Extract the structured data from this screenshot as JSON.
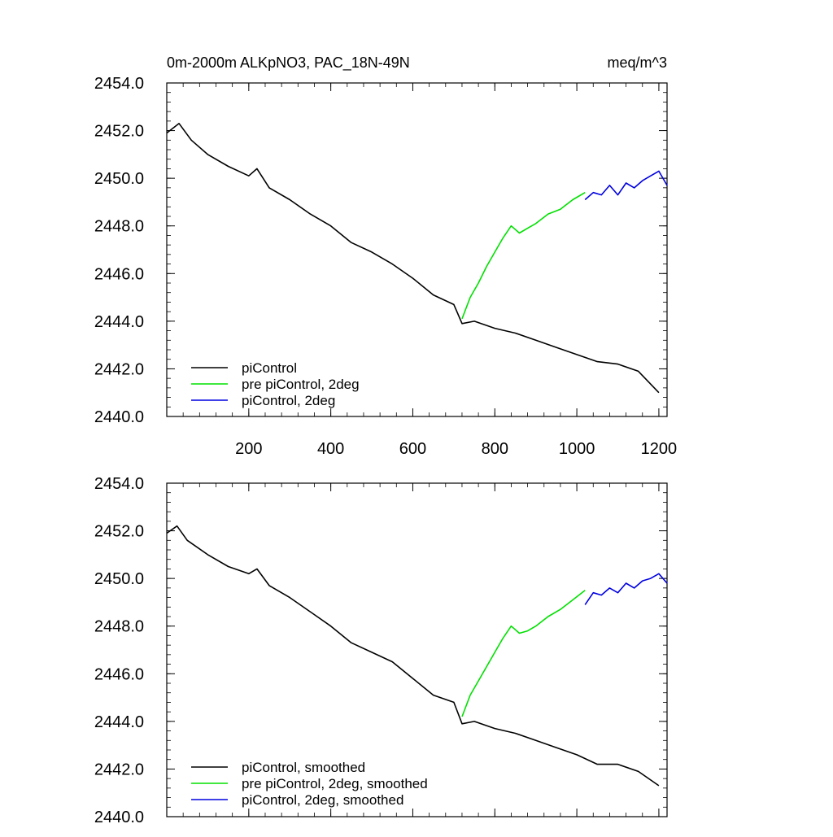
{
  "colors": {
    "control": "#000000",
    "pre": "#00e000",
    "twodeg": "#0000e0",
    "axis": "#000000",
    "background": "#ffffff"
  },
  "chart_data": [
    {
      "type": "line",
      "title": "0m-2000m ALKpNO3, PAC_18N-49N",
      "units": "meq/m^3",
      "xlim": [
        0,
        1220
      ],
      "ylim": [
        2440,
        2454
      ],
      "xticks": [
        200,
        400,
        600,
        800,
        1000,
        1200
      ],
      "xtick_labels": [
        "200",
        "400",
        "600",
        "800",
        "1000",
        "1200"
      ],
      "yticks": [
        2440,
        2442,
        2444,
        2446,
        2448,
        2450,
        2452,
        2454
      ],
      "ytick_labels": [
        "2440.0",
        "2442.0",
        "2444.0",
        "2446.0",
        "2448.0",
        "2450.0",
        "2452.0",
        "2454.0"
      ],
      "legend": "bottom-left",
      "series": [
        {
          "name": "piControl",
          "color": "#000000",
          "x": [
            0,
            30,
            60,
            100,
            150,
            200,
            220,
            250,
            300,
            350,
            400,
            450,
            500,
            550,
            600,
            650,
            700,
            720,
            750,
            800,
            850,
            900,
            950,
            1000,
            1050,
            1100,
            1150,
            1200
          ],
          "y": [
            2451.9,
            2452.3,
            2451.6,
            2451.0,
            2450.5,
            2450.1,
            2450.4,
            2449.6,
            2449.1,
            2448.5,
            2448.0,
            2447.3,
            2446.9,
            2446.4,
            2445.8,
            2445.1,
            2444.7,
            2443.9,
            2444.0,
            2443.7,
            2443.5,
            2443.2,
            2442.9,
            2442.6,
            2442.3,
            2442.2,
            2441.9,
            2441.0
          ]
        },
        {
          "name": "pre piControl, 2deg",
          "color": "#00e000",
          "x": [
            720,
            740,
            760,
            780,
            800,
            820,
            840,
            860,
            880,
            900,
            930,
            960,
            990,
            1020
          ],
          "y": [
            2444.1,
            2445.0,
            2445.6,
            2446.3,
            2446.9,
            2447.5,
            2448.0,
            2447.7,
            2447.9,
            2448.1,
            2448.5,
            2448.7,
            2449.1,
            2449.4
          ]
        },
        {
          "name": "piControl, 2deg",
          "color": "#0000e0",
          "x": [
            1020,
            1040,
            1060,
            1080,
            1100,
            1120,
            1140,
            1160,
            1180,
            1200,
            1220
          ],
          "y": [
            2449.1,
            2449.4,
            2449.3,
            2449.7,
            2449.3,
            2449.8,
            2449.6,
            2449.9,
            2450.1,
            2450.3,
            2449.7
          ]
        }
      ]
    },
    {
      "type": "line",
      "xlim": [
        0,
        1220
      ],
      "ylim": [
        2440,
        2454
      ],
      "yticks": [
        2440,
        2442,
        2444,
        2446,
        2448,
        2450,
        2452,
        2454
      ],
      "ytick_labels": [
        "2440.0",
        "2442.0",
        "2444.0",
        "2446.0",
        "2448.0",
        "2450.0",
        "2452.0",
        "2454.0"
      ],
      "legend": "bottom-left",
      "series": [
        {
          "name": "piControl, smoothed",
          "color": "#000000",
          "x": [
            0,
            25,
            50,
            100,
            150,
            200,
            220,
            250,
            300,
            350,
            400,
            450,
            500,
            550,
            600,
            650,
            700,
            720,
            750,
            800,
            850,
            900,
            950,
            1000,
            1050,
            1100,
            1150,
            1200
          ],
          "y": [
            2451.9,
            2452.2,
            2451.6,
            2451.0,
            2450.5,
            2450.2,
            2450.4,
            2449.7,
            2449.2,
            2448.6,
            2448.0,
            2447.3,
            2446.9,
            2446.5,
            2445.8,
            2445.1,
            2444.8,
            2443.9,
            2444.0,
            2443.7,
            2443.5,
            2443.2,
            2442.9,
            2442.6,
            2442.2,
            2442.2,
            2441.9,
            2441.3
          ]
        },
        {
          "name": "pre piControl, 2deg, smoothed",
          "color": "#00e000",
          "x": [
            720,
            740,
            760,
            780,
            800,
            820,
            840,
            860,
            880,
            900,
            930,
            960,
            990,
            1020
          ],
          "y": [
            2444.2,
            2445.1,
            2445.7,
            2446.3,
            2446.9,
            2447.5,
            2448.0,
            2447.7,
            2447.8,
            2448.0,
            2448.4,
            2448.7,
            2449.1,
            2449.5
          ]
        },
        {
          "name": "piControl, 2deg, smoothed",
          "color": "#0000e0",
          "x": [
            1020,
            1040,
            1060,
            1080,
            1100,
            1120,
            1140,
            1160,
            1180,
            1200,
            1220
          ],
          "y": [
            2448.9,
            2449.4,
            2449.3,
            2449.6,
            2449.4,
            2449.8,
            2449.6,
            2449.9,
            2450.0,
            2450.2,
            2449.8
          ]
        }
      ]
    }
  ]
}
